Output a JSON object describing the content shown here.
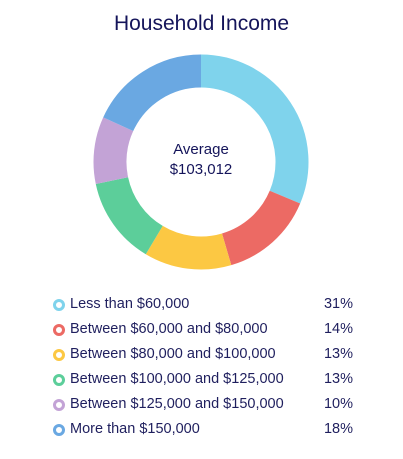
{
  "chart_data": {
    "type": "pie",
    "title": "Household Income",
    "center_label": "Average",
    "center_value": "$103,012",
    "categories": [
      "Less than $60,000",
      "Between $60,000 and $80,000",
      "Between $80,000 and $100,000",
      "Between $100,000 and $125,000",
      "Between $125,000 and $150,000",
      "More than $150,000"
    ],
    "values": [
      31,
      14,
      13,
      13,
      10,
      18
    ],
    "value_labels": [
      "31%",
      "14%",
      "13%",
      "13%",
      "10%",
      "18%"
    ],
    "colors": [
      "#7fd3ec",
      "#ec6a64",
      "#fcc843",
      "#5cce9a",
      "#c3a3d6",
      "#6aa8e2"
    ],
    "legend_position": "bottom"
  }
}
